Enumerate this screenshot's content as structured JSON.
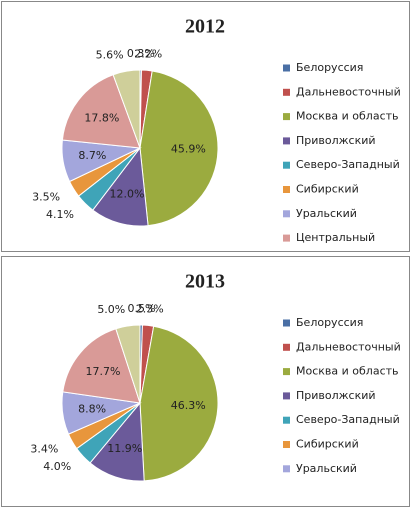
{
  "chart_data": [
    {
      "type": "pie",
      "title": "2012",
      "categories": [
        "Белоруссия",
        "Дальневосточный",
        "Москва и область",
        "Приволжский",
        "Северо-Западный",
        "Сибирский",
        "Уральский",
        "Центральный",
        null
      ],
      "values": [
        0.3,
        2.2,
        45.9,
        12.0,
        4.1,
        3.5,
        8.7,
        17.8,
        5.6
      ],
      "value_labels": [
        "0.3%",
        "2.2%",
        "45.9%",
        "12.0%",
        "4.1%",
        "3.5%",
        "8.7%",
        "17.8%",
        "5.6%"
      ],
      "colors": [
        "#4a6fa5",
        "#c0504d",
        "#9bab3f",
        "#6b5a9a",
        "#3fa4b8",
        "#e8963c",
        "#a3a6dc",
        "#d99a97",
        "#cfcf9a"
      ]
    },
    {
      "type": "pie",
      "title": "2013",
      "categories": [
        "Белоруссия",
        "Дальневосточный",
        "Москва и область",
        "Приволжский",
        "Северо-Западный",
        "Сибирский",
        "Уральский",
        null,
        null
      ],
      "values": [
        0.5,
        2.3,
        46.3,
        11.9,
        4.0,
        3.4,
        8.8,
        17.7,
        5.0
      ],
      "value_labels": [
        "0.5%",
        "2.3%",
        "46.3%",
        "11.9%",
        "4.0%",
        "3.4%",
        "8.8%",
        "17.7%",
        "5.0%"
      ],
      "colors": [
        "#4a6fa5",
        "#c0504d",
        "#9bab3f",
        "#6b5a9a",
        "#3fa4b8",
        "#e8963c",
        "#a3a6dc",
        "#d99a97",
        "#cfcf9a"
      ]
    }
  ]
}
